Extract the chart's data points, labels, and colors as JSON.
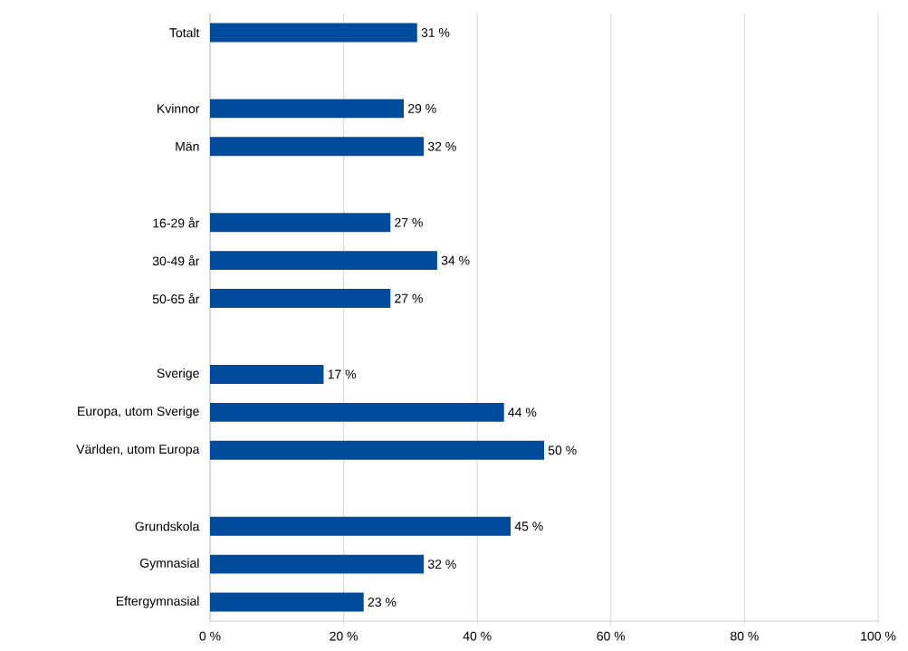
{
  "chart_data": {
    "type": "bar",
    "orientation": "horizontal",
    "categories": [
      "Totalt",
      null,
      "Kvinnor",
      "Män",
      null,
      "16-29 år",
      "30-49 år",
      "50-65 år",
      null,
      "Sverige",
      "Europa, utom Sverige",
      "Världen, utom Europa",
      null,
      "Grundskola",
      "Gymnasial",
      "Eftergymnasial"
    ],
    "values": [
      31,
      null,
      29,
      32,
      null,
      27,
      34,
      27,
      null,
      17,
      44,
      50,
      null,
      45,
      32,
      23
    ],
    "value_labels": [
      "31 %",
      null,
      "29 %",
      "32 %",
      null,
      "27 %",
      "34 %",
      "27 %",
      null,
      "17 %",
      "44 %",
      "50 %",
      null,
      "45 %",
      "32 %",
      "23 %"
    ],
    "color": "#004b9b",
    "xlim": [
      0,
      100
    ],
    "xticks": [
      {
        "value": 0,
        "label": "0 %"
      },
      {
        "value": 20,
        "label": "20 %"
      },
      {
        "value": 40,
        "label": "40 %"
      },
      {
        "value": 60,
        "label": "60 %"
      },
      {
        "value": 80,
        "label": "80 %"
      },
      {
        "value": 100,
        "label": "100 %"
      }
    ],
    "grid": "x"
  }
}
